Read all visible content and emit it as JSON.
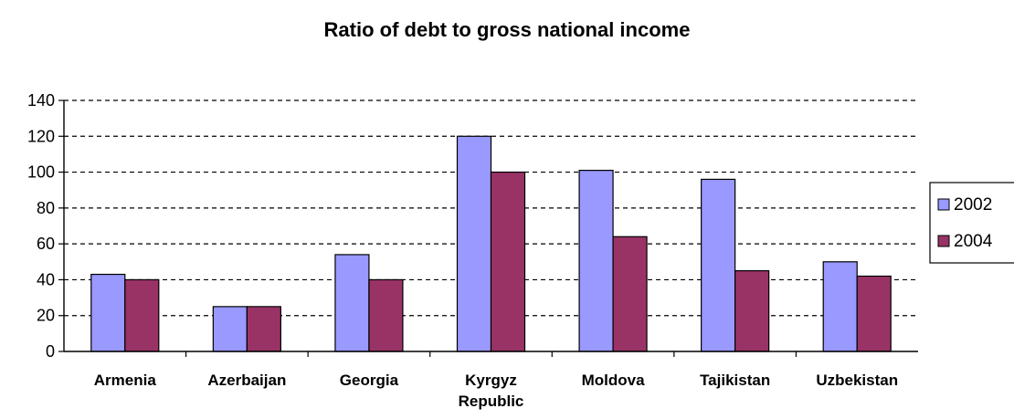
{
  "chart_data": {
    "type": "bar",
    "title": "Ratio of debt to gross national income",
    "xlabel": "",
    "ylabel": "",
    "categories": [
      [
        "Armenia"
      ],
      [
        "Azerbaijan"
      ],
      [
        "Georgia"
      ],
      [
        "Kyrgyz",
        "Republic"
      ],
      [
        "Moldova"
      ],
      [
        "Tajikistan"
      ],
      [
        "Uzbekistan"
      ]
    ],
    "series": [
      {
        "name": "2002",
        "color": "#9999ff",
        "values": [
          43,
          25,
          54,
          120,
          101,
          96,
          50
        ]
      },
      {
        "name": "2004",
        "color": "#993366",
        "values": [
          40,
          25,
          40,
          100,
          64,
          45,
          42
        ]
      }
    ],
    "ylim": [
      0,
      140
    ],
    "yticks": [
      0,
      20,
      40,
      60,
      80,
      100,
      120,
      140
    ],
    "grid": "dashed horizontal",
    "legend": "right"
  }
}
